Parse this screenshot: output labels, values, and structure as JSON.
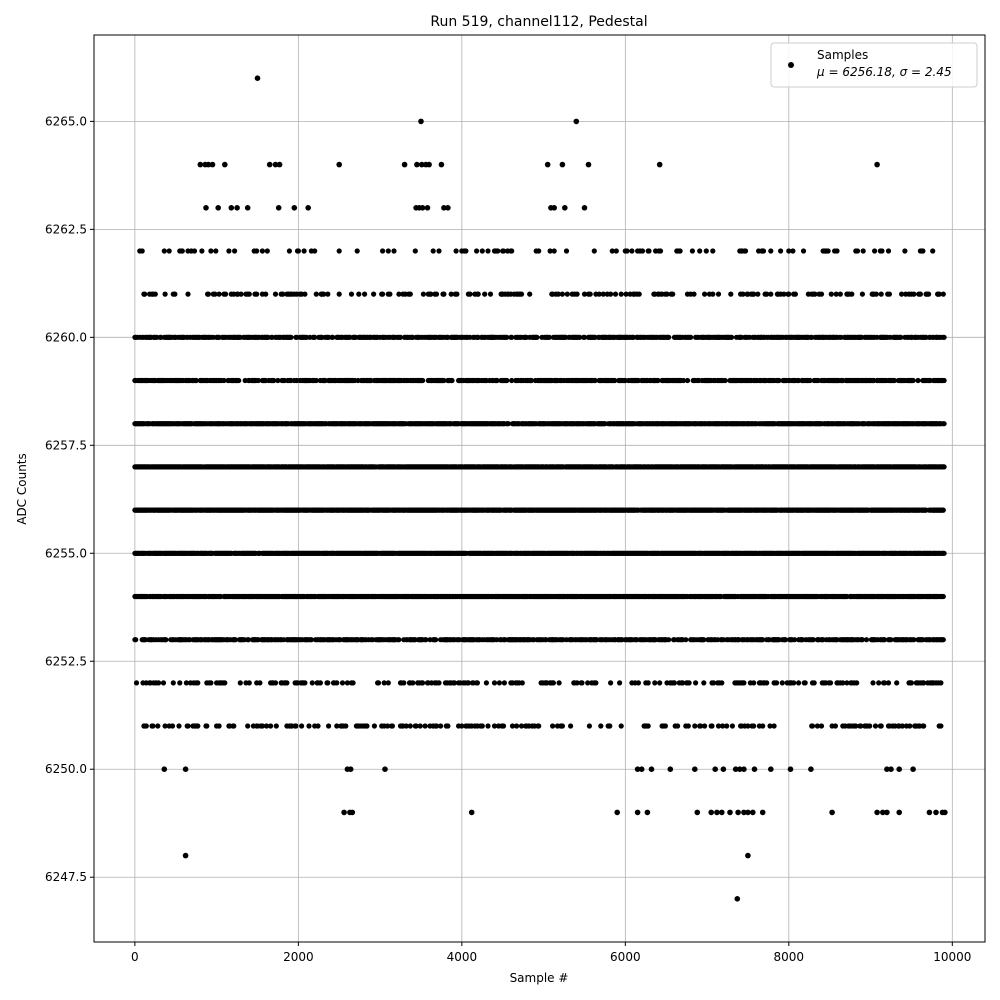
{
  "chart_data": {
    "type": "scatter",
    "title": "Run 519, channel112, Pedestal",
    "xlabel": "Sample #",
    "ylabel": "ADC Counts",
    "xlim": [
      -500,
      10400
    ],
    "ylim": [
      6246.0,
      6267.0
    ],
    "x_ticks": [
      0,
      2000,
      4000,
      6000,
      8000,
      10000
    ],
    "y_ticks": [
      "6247.5",
      "6250.0",
      "6252.5",
      "6255.0",
      "6257.5",
      "6260.0",
      "6262.5",
      "6265.0"
    ],
    "grid": true,
    "legend_position": "top-right",
    "marker_color": "#000000",
    "series": [
      {
        "name": "Samples",
        "legend_stats": "μ = 6256.18, σ = 2.45",
        "level_bands": [
          {
            "y": 6254,
            "x_start": 0,
            "x_end": 9900,
            "density": 0.85
          },
          {
            "y": 6255,
            "x_start": 0,
            "x_end": 9900,
            "density": 0.9
          },
          {
            "y": 6256,
            "x_start": 0,
            "x_end": 9900,
            "density": 0.9
          },
          {
            "y": 6257,
            "x_start": 0,
            "x_end": 9900,
            "density": 0.92
          },
          {
            "y": 6258,
            "x_start": 0,
            "x_end": 9900,
            "density": 0.85
          },
          {
            "y": 6259,
            "x_start": 0,
            "x_end": 9900,
            "density": 0.55
          },
          {
            "y": 6260,
            "x_start": 0,
            "x_end": 9900,
            "density": 0.6
          },
          {
            "y": 6253,
            "x_start": 0,
            "x_end": 9900,
            "density": 0.55
          },
          {
            "y": 6252,
            "x_start": 0,
            "x_end": 9900,
            "density": 0.22
          },
          {
            "y": 6261,
            "x_start": 0,
            "x_end": 9900,
            "density": 0.2
          },
          {
            "y": 6251,
            "x_start": 0,
            "x_end": 9900,
            "density": 0.18
          },
          {
            "y": 6262,
            "x_start": 0,
            "x_end": 9900,
            "density": 0.1
          }
        ],
        "sparse_points": [
          [
            1500,
            6266
          ],
          [
            3500,
            6265
          ],
          [
            5400,
            6265
          ],
          [
            800,
            6264
          ],
          [
            860,
            6264
          ],
          [
            900,
            6264
          ],
          [
            950,
            6264
          ],
          [
            1100,
            6264
          ],
          [
            1650,
            6264
          ],
          [
            1720,
            6264
          ],
          [
            1770,
            6264
          ],
          [
            2500,
            6264
          ],
          [
            3300,
            6264
          ],
          [
            3450,
            6264
          ],
          [
            3510,
            6264
          ],
          [
            3560,
            6264
          ],
          [
            3600,
            6264
          ],
          [
            3750,
            6264
          ],
          [
            5050,
            6264
          ],
          [
            5230,
            6264
          ],
          [
            5550,
            6264
          ],
          [
            6420,
            6264
          ],
          [
            9080,
            6264
          ],
          [
            870,
            6263
          ],
          [
            1020,
            6263
          ],
          [
            1180,
            6263
          ],
          [
            1250,
            6263
          ],
          [
            1380,
            6263
          ],
          [
            1760,
            6263
          ],
          [
            1950,
            6263
          ],
          [
            2120,
            6263
          ],
          [
            3440,
            6263
          ],
          [
            3480,
            6263
          ],
          [
            3520,
            6263
          ],
          [
            3580,
            6263
          ],
          [
            3780,
            6263
          ],
          [
            3830,
            6263
          ],
          [
            5090,
            6263
          ],
          [
            5130,
            6263
          ],
          [
            5260,
            6263
          ],
          [
            5500,
            6263
          ],
          [
            360,
            6250
          ],
          [
            620,
            6250
          ],
          [
            2600,
            6250
          ],
          [
            2640,
            6250
          ],
          [
            3060,
            6250
          ],
          [
            6150,
            6250
          ],
          [
            6200,
            6250
          ],
          [
            6320,
            6250
          ],
          [
            6550,
            6250
          ],
          [
            6850,
            6250
          ],
          [
            7100,
            6250
          ],
          [
            7200,
            6250
          ],
          [
            7350,
            6250
          ],
          [
            7400,
            6250
          ],
          [
            7450,
            6250
          ],
          [
            7580,
            6250
          ],
          [
            7780,
            6250
          ],
          [
            8020,
            6250
          ],
          [
            8270,
            6250
          ],
          [
            9200,
            6250
          ],
          [
            9250,
            6250
          ],
          [
            9350,
            6250
          ],
          [
            9520,
            6250
          ],
          [
            2560,
            6249
          ],
          [
            2630,
            6249
          ],
          [
            2660,
            6249
          ],
          [
            4120,
            6249
          ],
          [
            5900,
            6249
          ],
          [
            6150,
            6249
          ],
          [
            6270,
            6249
          ],
          [
            6880,
            6249
          ],
          [
            7050,
            6249
          ],
          [
            7120,
            6249
          ],
          [
            7180,
            6249
          ],
          [
            7280,
            6249
          ],
          [
            7380,
            6249
          ],
          [
            7450,
            6249
          ],
          [
            7500,
            6249
          ],
          [
            7560,
            6249
          ],
          [
            7680,
            6249
          ],
          [
            8530,
            6249
          ],
          [
            9080,
            6249
          ],
          [
            9150,
            6249
          ],
          [
            9200,
            6249
          ],
          [
            9350,
            6249
          ],
          [
            9720,
            6249
          ],
          [
            9800,
            6249
          ],
          [
            9880,
            6249
          ],
          [
            9910,
            6249
          ],
          [
            620,
            6248
          ],
          [
            7500,
            6248
          ],
          [
            7370,
            6247
          ]
        ]
      }
    ]
  }
}
